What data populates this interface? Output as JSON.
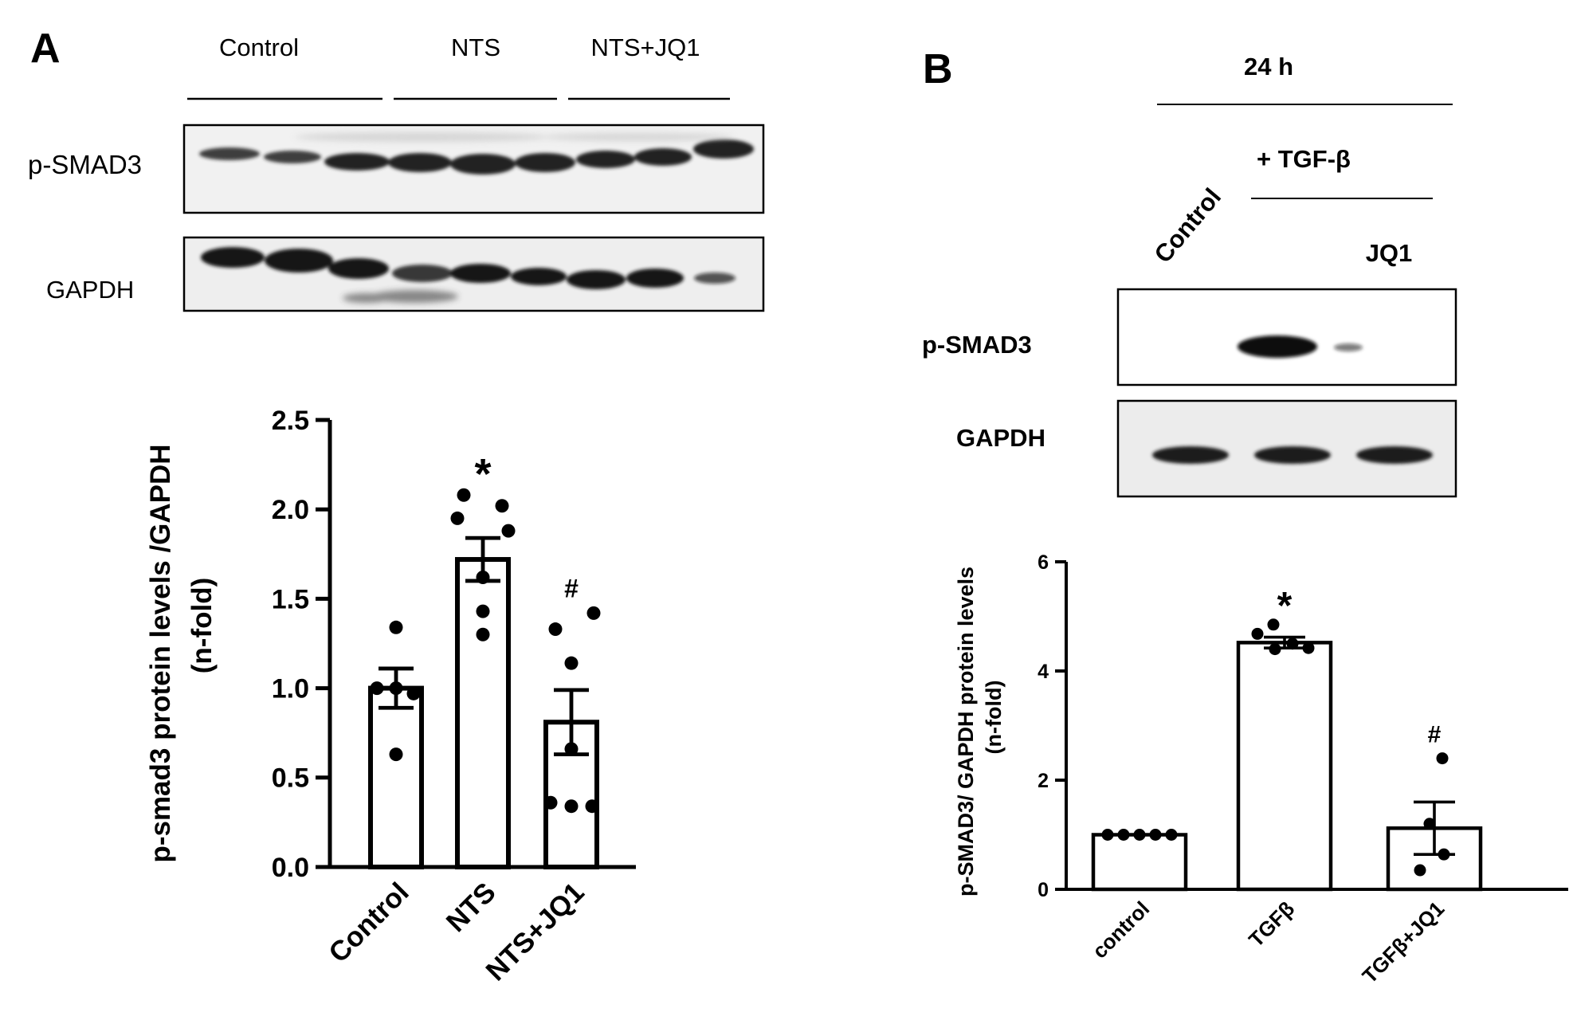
{
  "panel_a": {
    "letter": "A",
    "group_labels": [
      "Control",
      "NTS",
      "NTS+JQ1"
    ],
    "blot_labels": [
      "p-SMAD3",
      "GAPDH"
    ]
  },
  "panel_b": {
    "letter": "B",
    "time_label": "24 h",
    "treatment_label": "+ TGF-β",
    "control_label": "Control",
    "inhibitor_label": "JQ1",
    "blot_labels": [
      "p-SMAD3",
      "GAPDH"
    ]
  },
  "chart_data": [
    {
      "type": "bar",
      "panel": "A",
      "categories": [
        "Control",
        "NTS",
        "NTS+JQ1"
      ],
      "values": [
        1.0,
        1.72,
        0.81
      ],
      "sem": [
        0.11,
        0.12,
        0.18
      ],
      "points": [
        [
          1.34,
          1.0,
          1.0,
          0.97,
          0.63
        ],
        [
          2.08,
          2.02,
          1.95,
          1.88,
          1.62,
          1.43,
          1.3
        ],
        [
          1.42,
          1.33,
          1.14,
          0.66,
          0.36,
          0.34,
          0.34
        ]
      ],
      "significance": [
        "",
        "*",
        "#"
      ],
      "title": "",
      "xlabel": "",
      "ylabel_lines": [
        "p-smad3 protein levels /GAPDH",
        "(n-fold)"
      ],
      "ylim": [
        0,
        2.5
      ],
      "yticks": [
        0.0,
        0.5,
        1.0,
        1.5,
        2.0,
        2.5
      ],
      "ytick_labels": [
        "0.0",
        "0.5",
        "1.0",
        "1.5",
        "2.0",
        "2.5"
      ],
      "grid": false,
      "bar_color": "#ffffff",
      "edge_color": "#000000"
    },
    {
      "type": "bar",
      "panel": "B",
      "categories": [
        "control",
        "TGFβ",
        "TGFβ+JQ1"
      ],
      "values": [
        1.0,
        4.52,
        1.12
      ],
      "sem": [
        0.0,
        0.1,
        0.48
      ],
      "points": [
        [
          1.0,
          1.0,
          1.0,
          1.0,
          1.0
        ],
        [
          4.85,
          4.68,
          4.5,
          4.42,
          4.4
        ],
        [
          2.4,
          1.2,
          0.64,
          0.35
        ]
      ],
      "significance": [
        "",
        "*",
        "#"
      ],
      "title": "",
      "xlabel": "",
      "ylabel_lines": [
        "p-SMAD3/ GAPDH protein levels",
        "(n-fold)"
      ],
      "ylim": [
        0,
        6
      ],
      "yticks": [
        0,
        2,
        4,
        6
      ],
      "ytick_labels": [
        "0",
        "2",
        "4",
        "6"
      ],
      "grid": false,
      "bar_color": "#ffffff",
      "edge_color": "#000000"
    }
  ]
}
